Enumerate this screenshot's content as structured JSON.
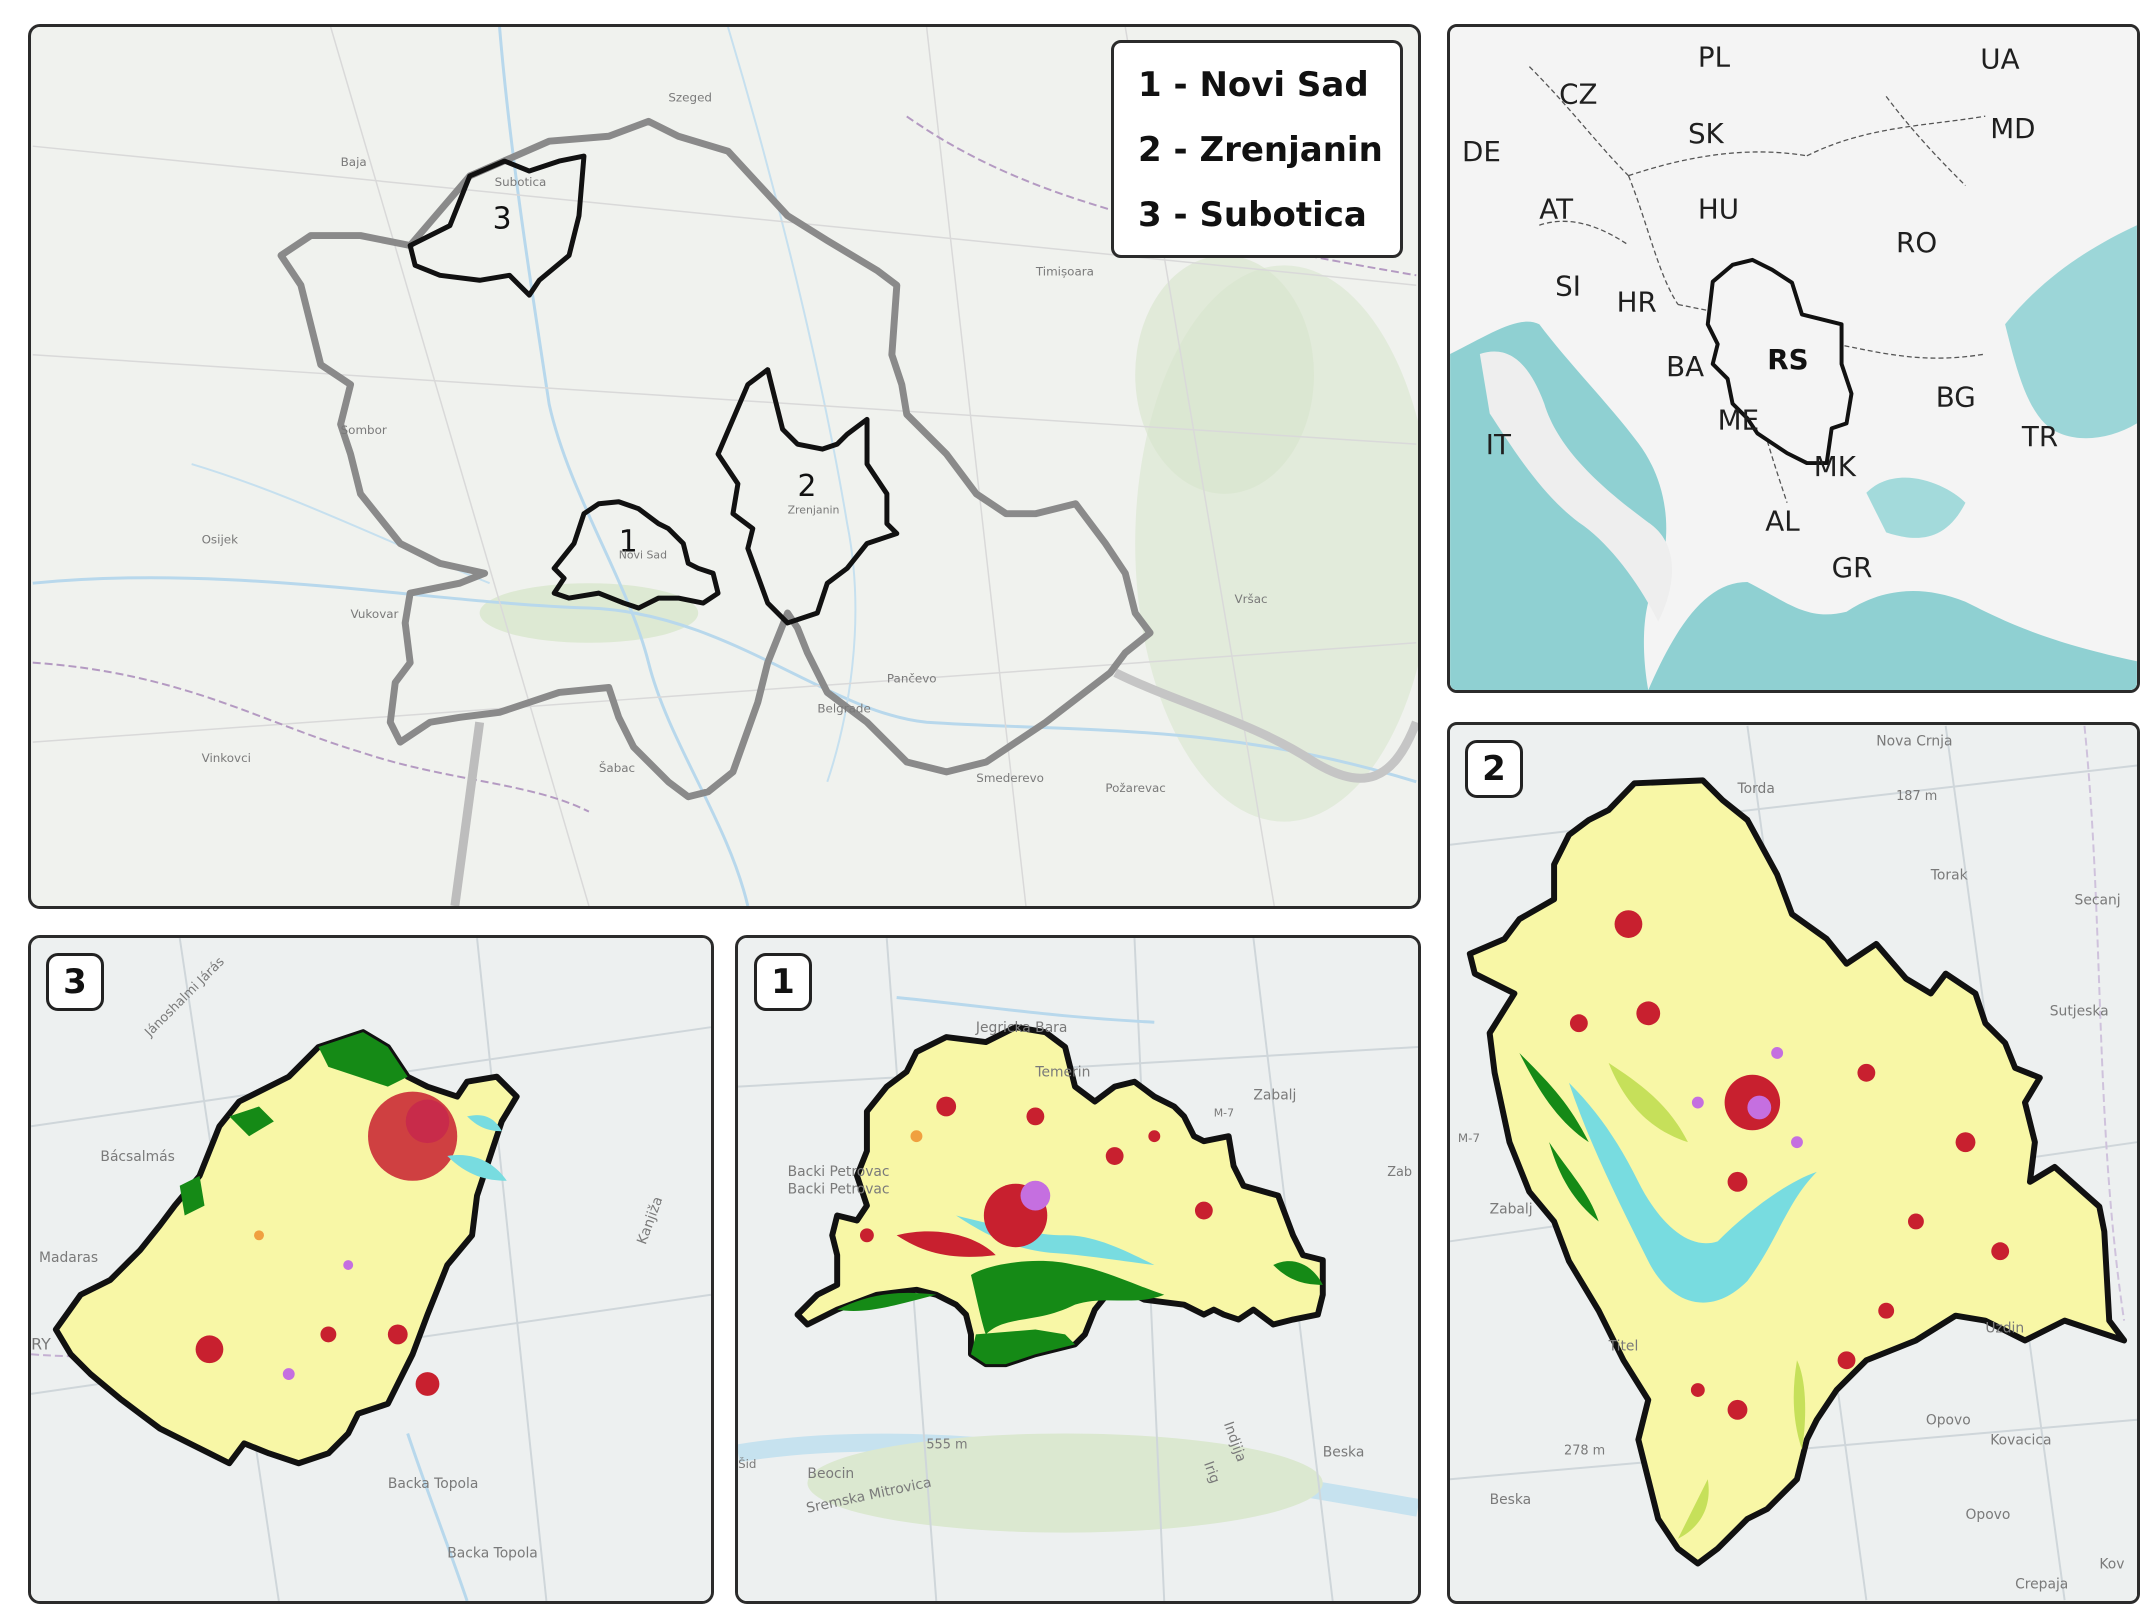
{
  "legend": {
    "items": [
      "1 - Novi Sad",
      "2 - Zrenjanin",
      "3 - Subotica"
    ]
  },
  "overview_map": {
    "area_numbers": [
      "1",
      "2",
      "3"
    ],
    "place_labels": [
      "Szeged",
      "Baja",
      "Subotica",
      "Sombor",
      "Novi Sad",
      "Zrenjanin",
      "Timișoara",
      "Belgrade",
      "Pančevo",
      "Šabac",
      "Osijek",
      "Vukovar",
      "Vinkovci",
      "Smederevo",
      "Požarevac",
      "Vršac"
    ]
  },
  "europe_map": {
    "countries": [
      "PL",
      "UA",
      "CZ",
      "SK",
      "MD",
      "DE",
      "AT",
      "HU",
      "RO",
      "SI",
      "HR",
      "BA",
      "RS",
      "BG",
      "IT",
      "ME",
      "MK",
      "TR",
      "AL",
      "GR"
    ],
    "highlight": "RS"
  },
  "panels": {
    "subotica": {
      "badge": "3",
      "labels": [
        "Jánoshalmi Járás",
        "Bácsalmás",
        "Madaras",
        "Kanjiža",
        "Backa Topola",
        "Backa Topola",
        "RY"
      ]
    },
    "novi_sad": {
      "badge": "1",
      "labels": [
        "Jegricka Bara",
        "Temerin",
        "Zabalj",
        "Backi Petrovac",
        "Backi Petrovac",
        "555 m",
        "Beocin",
        "Sremska Mitrovica",
        "Indjija",
        "Irig",
        "Beska",
        "Šid",
        "M-7",
        "Zab"
      ]
    },
    "zrenjanin": {
      "badge": "2",
      "labels": [
        "Nova Crnja",
        "Torda",
        "187 m",
        "Torak",
        "Secanj",
        "Sutjeska",
        "Zabalj",
        "M-7",
        "Titel",
        "Uzdin",
        "Opovo",
        "Kovacica",
        "278 m",
        "Beska",
        "Opovo",
        "Crepaja",
        "Kov"
      ]
    }
  },
  "colors": {
    "agricultural": "#f8f7a6",
    "urban": "#c8202f",
    "forest": "#158a16",
    "water": "#78dce0",
    "industrial": "#c56fe0",
    "grassland": "#c6e05a",
    "boundary": "#111111",
    "region_boundary": "#8a8a8a",
    "sea": "#8ecfcf"
  }
}
